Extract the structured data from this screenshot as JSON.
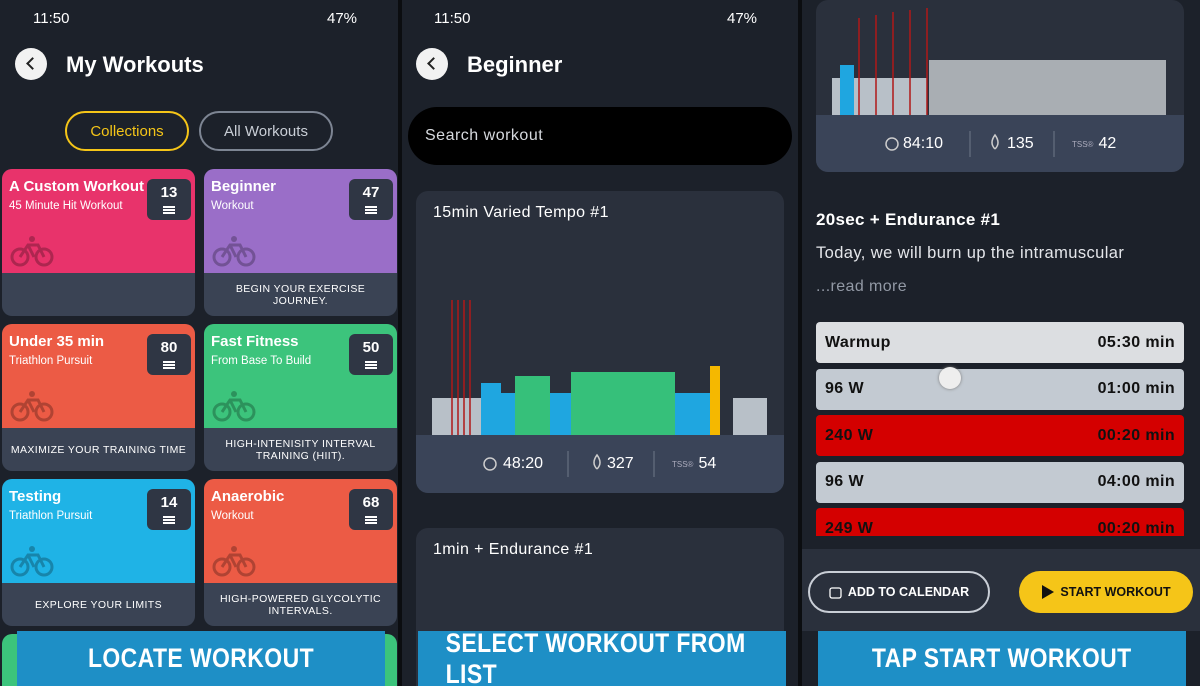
{
  "panels": [
    {
      "status": {
        "time": "11:50",
        "battery": "47%"
      },
      "title": "My Workouts",
      "tabs": [
        "Collections",
        "All Workouts"
      ],
      "cards": [
        {
          "title": "A Custom Workout",
          "subtitle": "45 Minute Hit Workout",
          "count": "13",
          "color": "#e8336b"
        },
        {
          "title": "Beginner",
          "subtitle": "Workout",
          "count": "47",
          "footer": "BEGIN YOUR EXERCISE JOURNEY.",
          "color": "#9a6ec8"
        },
        {
          "title": "Under 35 min",
          "subtitle": "Triathlon Pursuit",
          "count": "80",
          "footer": "MAXIMIZE YOUR TRAINING TIME",
          "color": "#ec5b45"
        },
        {
          "title": "Fast Fitness",
          "subtitle": "From Base To Build",
          "count": "50",
          "footer": "HIGH-INTENISITY INTERVAL TRAINING (HIIT).",
          "color": "#3cc47c"
        },
        {
          "title": "Testing",
          "subtitle": "Triathlon Pursuit",
          "count": "14",
          "footer": "EXPLORE YOUR LIMITS",
          "color": "#1fb3e6"
        },
        {
          "title": "Anaerobic",
          "subtitle": "Workout",
          "count": "68",
          "footer": "HIGH-POWERED GLYCOLYTIC INTERVALS.",
          "color": "#ec5b45"
        }
      ],
      "caption": "LOCATE WORKOUT"
    },
    {
      "status": {
        "time": "11:50",
        "battery": "47%"
      },
      "title": "Beginner",
      "search": "Search workout",
      "workouts": [
        {
          "title": "15min Varied Tempo #1",
          "duration": "48:20",
          "calories": "327",
          "tss_label": "TSS®",
          "tss": "54"
        },
        {
          "title": "1min + Endurance #1"
        }
      ],
      "caption": "SELECT WORKOUT FROM LIST"
    },
    {
      "stats": {
        "duration": "84:10",
        "calories": "135",
        "tss_label": "TSS®",
        "tss": "42"
      },
      "title": "20sec + Endurance #1",
      "description": "Today, we will burn up the intramuscular",
      "read_more": "...read more",
      "intervals": [
        {
          "label": "Warmup",
          "duration": "05:30 min",
          "color": "#dcdee1"
        },
        {
          "label": "96 W",
          "duration": "01:00 min",
          "color": "#c3cad2"
        },
        {
          "label": "240 W",
          "duration": "00:20 min",
          "color": "#d40000"
        },
        {
          "label": "96 W",
          "duration": "04:00 min",
          "color": "#c3cad2"
        },
        {
          "label": "249 W",
          "duration": "00:20 min",
          "color": "#d40000"
        }
      ],
      "buttons": [
        "ADD TO CALENDAR",
        "START WORKOUT"
      ],
      "caption": "TAP START WORKOUT"
    }
  ]
}
